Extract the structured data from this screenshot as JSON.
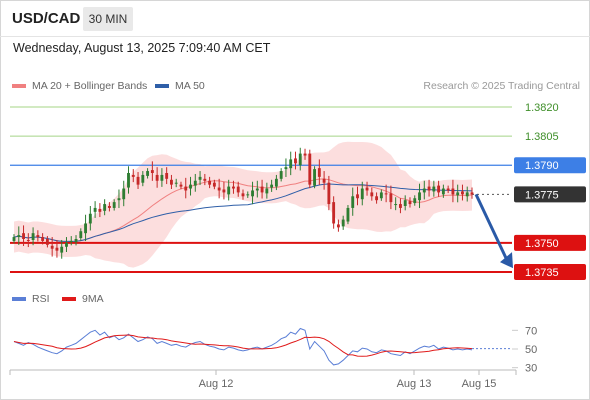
{
  "header": {
    "symbol": "USD/CAD",
    "timeframe": "30 MIN",
    "datetime": "Wednesday, August 13, 2025 7:09:40 AM CET"
  },
  "legend": {
    "ma20_label": "MA 20 + Bollinger Bands",
    "ma50_label": "MA 50",
    "source": "Research © 2025 Trading Central"
  },
  "rsi_legend": {
    "rsi_label": "RSI",
    "ma_label": "9MA"
  },
  "colors": {
    "up_candle": "#2e7d32",
    "down_candle": "#c62828",
    "bollinger_fill": "#fbd3d3",
    "ma20": "#f08080",
    "ma50": "#2f5fa8",
    "resistance": "#a5d486",
    "pivot": "#3d7fe6",
    "support": "#dd1111",
    "current": "#333333",
    "rsi": "#5b7fd6",
    "rsi_ma": "#e01a1a",
    "arrow": "#2a5aa7"
  },
  "chart_data": [
    {
      "type": "candlestick",
      "symbol": "USD/CAD",
      "timeframe": "30 MIN",
      "y_range": [
        1.372,
        1.3832
      ],
      "x_tick_labels": [
        "Aug 12",
        "Aug 13",
        "Aug 15"
      ],
      "levels": [
        {
          "value": 1.382,
          "label": "1.3820",
          "kind": "resistance"
        },
        {
          "value": 1.3805,
          "label": "1.3805",
          "kind": "resistance"
        },
        {
          "value": 1.379,
          "label": "1.3790",
          "kind": "pivot"
        },
        {
          "value": 1.3775,
          "label": "1.3775",
          "kind": "current"
        },
        {
          "value": 1.375,
          "label": "1.3750",
          "kind": "support"
        },
        {
          "value": 1.3735,
          "label": "1.3735",
          "kind": "support"
        }
      ],
      "closes": [
        1.3753,
        1.3754,
        1.3752,
        1.3751,
        1.3755,
        1.3753,
        1.3751,
        1.3749,
        1.3747,
        1.3746,
        1.3748,
        1.375,
        1.3751,
        1.3752,
        1.3756,
        1.376,
        1.3765,
        1.3768,
        1.3766,
        1.377,
        1.3768,
        1.3771,
        1.3773,
        1.3778,
        1.3786,
        1.3784,
        1.378,
        1.3785,
        1.3787,
        1.3786,
        1.3782,
        1.3785,
        1.3783,
        1.378,
        1.3781,
        1.3779,
        1.3777,
        1.378,
        1.3782,
        1.3784,
        1.3782,
        1.378,
        1.3779,
        1.3777,
        1.3776,
        1.3779,
        1.3778,
        1.3776,
        1.3774,
        1.3775,
        1.3777,
        1.3778,
        1.3776,
        1.3778,
        1.378,
        1.3783,
        1.3787,
        1.3789,
        1.3793,
        1.3791,
        1.3796,
        1.3795,
        1.378,
        1.3788,
        1.3784,
        1.3781,
        1.377,
        1.376,
        1.3758,
        1.3762,
        1.3768,
        1.3774,
        1.3773,
        1.3778,
        1.3777,
        1.3774,
        1.3772,
        1.3776,
        1.3775,
        1.3771,
        1.377,
        1.3768,
        1.3772,
        1.377,
        1.3773,
        1.3776,
        1.3778,
        1.3777,
        1.3779,
        1.3776,
        1.3778,
        1.3777,
        1.3775,
        1.3776,
        1.3775,
        1.3776,
        1.3775
      ],
      "ma20_end": 1.3774,
      "ma50_end": 1.3775,
      "projection": {
        "from": 1.3775,
        "to": 1.3738
      }
    },
    {
      "type": "line",
      "title": "RSI",
      "y_ticks": [
        70,
        50,
        30
      ],
      "y_range": [
        25,
        78
      ],
      "series": [
        {
          "name": "RSI",
          "values": [
            58,
            56,
            54,
            57,
            55,
            52,
            50,
            48,
            46,
            45,
            48,
            52,
            54,
            56,
            60,
            64,
            68,
            70,
            65,
            68,
            62,
            64,
            60,
            62,
            66,
            62,
            58,
            60,
            63,
            61,
            56,
            58,
            56,
            54,
            55,
            53,
            52,
            55,
            57,
            58,
            55,
            53,
            52,
            50,
            49,
            52,
            51,
            49,
            48,
            49,
            51,
            52,
            50,
            52,
            54,
            57,
            61,
            63,
            68,
            66,
            72,
            70,
            50,
            58,
            53,
            48,
            38,
            33,
            34,
            38,
            43,
            48,
            47,
            51,
            50,
            47,
            46,
            49,
            48,
            45,
            44,
            43,
            47,
            45,
            48,
            51,
            53,
            52,
            54,
            50,
            52,
            51,
            49,
            50,
            49,
            50,
            49
          ]
        },
        {
          "name": "9MA"
        }
      ]
    }
  ]
}
